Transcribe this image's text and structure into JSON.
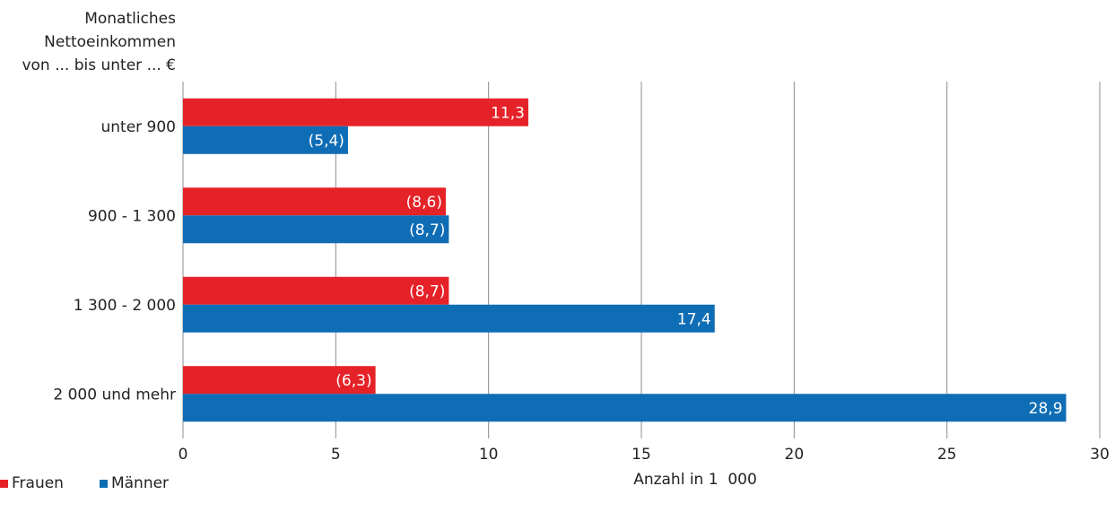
{
  "chart_data": {
    "type": "bar",
    "orientation": "horizontal",
    "ylabel": [
      "Monatliches",
      "Nettoeinkommen",
      "von ... bis unter ... €"
    ],
    "xlabel": "Anzahl in 1  000",
    "xlim": [
      0,
      30
    ],
    "xticks": [
      "0",
      "5",
      "10",
      "15",
      "20",
      "25",
      "30"
    ],
    "categories": [
      "unter 900",
      "900 - 1 300",
      "1 300 - 2 000",
      "2 000 und mehr"
    ],
    "series": [
      {
        "name": "Frauen",
        "color": "#e52228",
        "values": [
          11.3,
          8.6,
          8.7,
          6.3
        ],
        "labels": [
          "11,3",
          "(8,6)",
          "(8,7)",
          "(6,3)"
        ]
      },
      {
        "name": "Männer",
        "color": "#0f6db5",
        "values": [
          5.4,
          8.7,
          17.4,
          28.9
        ],
        "labels": [
          "(5,4)",
          "(8,7)",
          "17,4",
          "28,9"
        ]
      }
    ],
    "grid": "vertical",
    "legend_position": "bottom-left"
  }
}
